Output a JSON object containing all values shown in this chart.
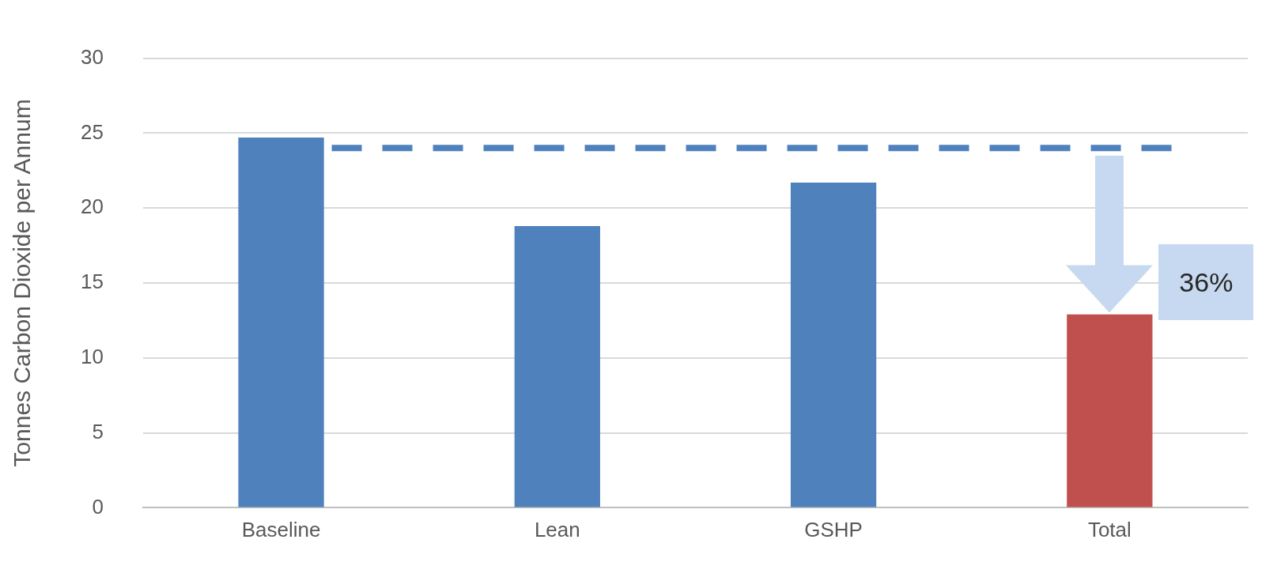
{
  "chart_data": {
    "type": "bar",
    "ylabel": "Tonnes Carbon Dioxide per Annum",
    "categories": [
      "Baseline",
      "Lean",
      "GSHP",
      "Total"
    ],
    "values": [
      24.7,
      18.8,
      21.7,
      12.9
    ],
    "colors": [
      "#4f81bd",
      "#4f81bd",
      "#4f81bd",
      "#c0504d"
    ],
    "ylim": [
      0,
      30
    ],
    "yticks": [
      0,
      5,
      10,
      15,
      20,
      25,
      30
    ],
    "grid": "y",
    "legend": false,
    "ref_lines": [
      {
        "axis": "y",
        "value": 24,
        "color": "#4f81bd",
        "line_style": "dashed"
      }
    ],
    "annotations": [
      "36%"
    ]
  }
}
